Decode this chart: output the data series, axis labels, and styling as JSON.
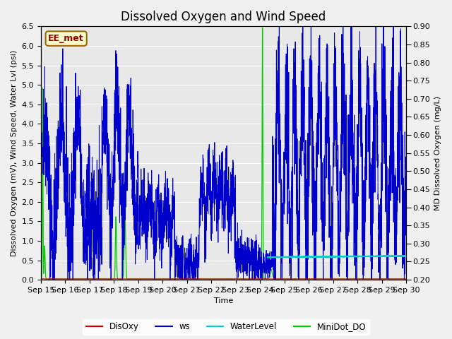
{
  "title": "Dissolved Oxygen and Wind Speed",
  "xlabel": "Time",
  "ylabel_left": "Dissolved Oxygen (mV), Wind Speed, Water Lvl (psi)",
  "ylabel_right": "MD Dissolved Oxygen (mg/L)",
  "ylim_left": [
    0.0,
    6.5
  ],
  "ylim_right": [
    0.2,
    0.9
  ],
  "annotation": "EE_met",
  "x_tick_labels": [
    "Sep 15",
    "Sep 16",
    "Sep 17",
    "Sep 18",
    "Sep 19",
    "Sep 20",
    "Sep 21",
    "Sep 22",
    "Sep 23",
    "Sep 24",
    "Sep 25",
    "Sep 26",
    "Sep 27",
    "Sep 28",
    "Sep 29",
    "Sep 30"
  ],
  "legend_labels": [
    "DisOxy",
    "ws",
    "WaterLevel",
    "MiniDot_DO"
  ],
  "legend_colors": [
    "#cc0000",
    "#0000cc",
    "#00cccc",
    "#00cc00"
  ],
  "background_color": "#f0f0f0",
  "plot_bg_color": "#e8e8e8",
  "title_fontsize": 12,
  "label_fontsize": 8,
  "tick_fontsize": 8
}
